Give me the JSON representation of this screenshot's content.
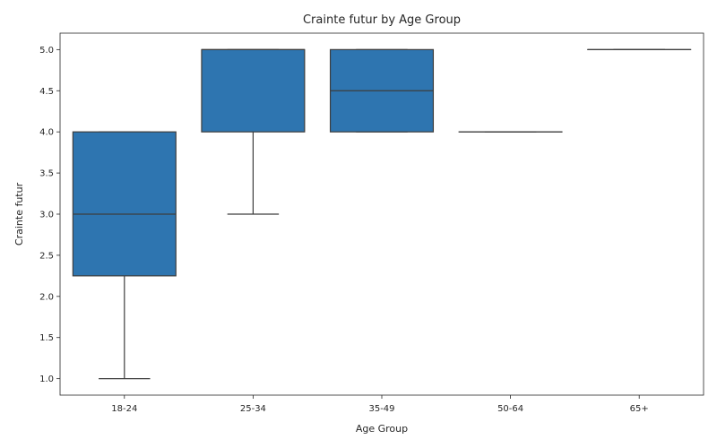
{
  "chart_data": {
    "type": "box",
    "title": "Crainte futur by Age Group",
    "xlabel": "Age Group",
    "ylabel": "Crainte futur",
    "categories": [
      "18-24",
      "25-34",
      "35-49",
      "50-64",
      "65+"
    ],
    "boxes": [
      {
        "category": "18-24",
        "whisker_low": 1.0,
        "q1": 2.25,
        "median": 3.0,
        "q3": 4.0,
        "whisker_high": 4.0
      },
      {
        "category": "25-34",
        "whisker_low": 3.0,
        "q1": 4.0,
        "median": 5.0,
        "q3": 5.0,
        "whisker_high": 5.0
      },
      {
        "category": "35-49",
        "whisker_low": 4.0,
        "q1": 4.0,
        "median": 4.5,
        "q3": 5.0,
        "whisker_high": 5.0
      },
      {
        "category": "50-64",
        "whisker_low": 4.0,
        "q1": 4.0,
        "median": 4.0,
        "q3": 4.0,
        "whisker_high": 4.0
      },
      {
        "category": "65+",
        "whisker_low": 5.0,
        "q1": 5.0,
        "median": 5.0,
        "q3": 5.0,
        "whisker_high": 5.0
      }
    ],
    "yticks": [
      "1.0",
      "1.5",
      "2.0",
      "2.5",
      "3.0",
      "3.5",
      "4.0",
      "4.5",
      "5.0"
    ],
    "ylim": [
      0.8,
      5.2
    ],
    "grid": false,
    "legend": "none",
    "box_color": "#2e75b0",
    "line_color": "#3d3d3d"
  }
}
